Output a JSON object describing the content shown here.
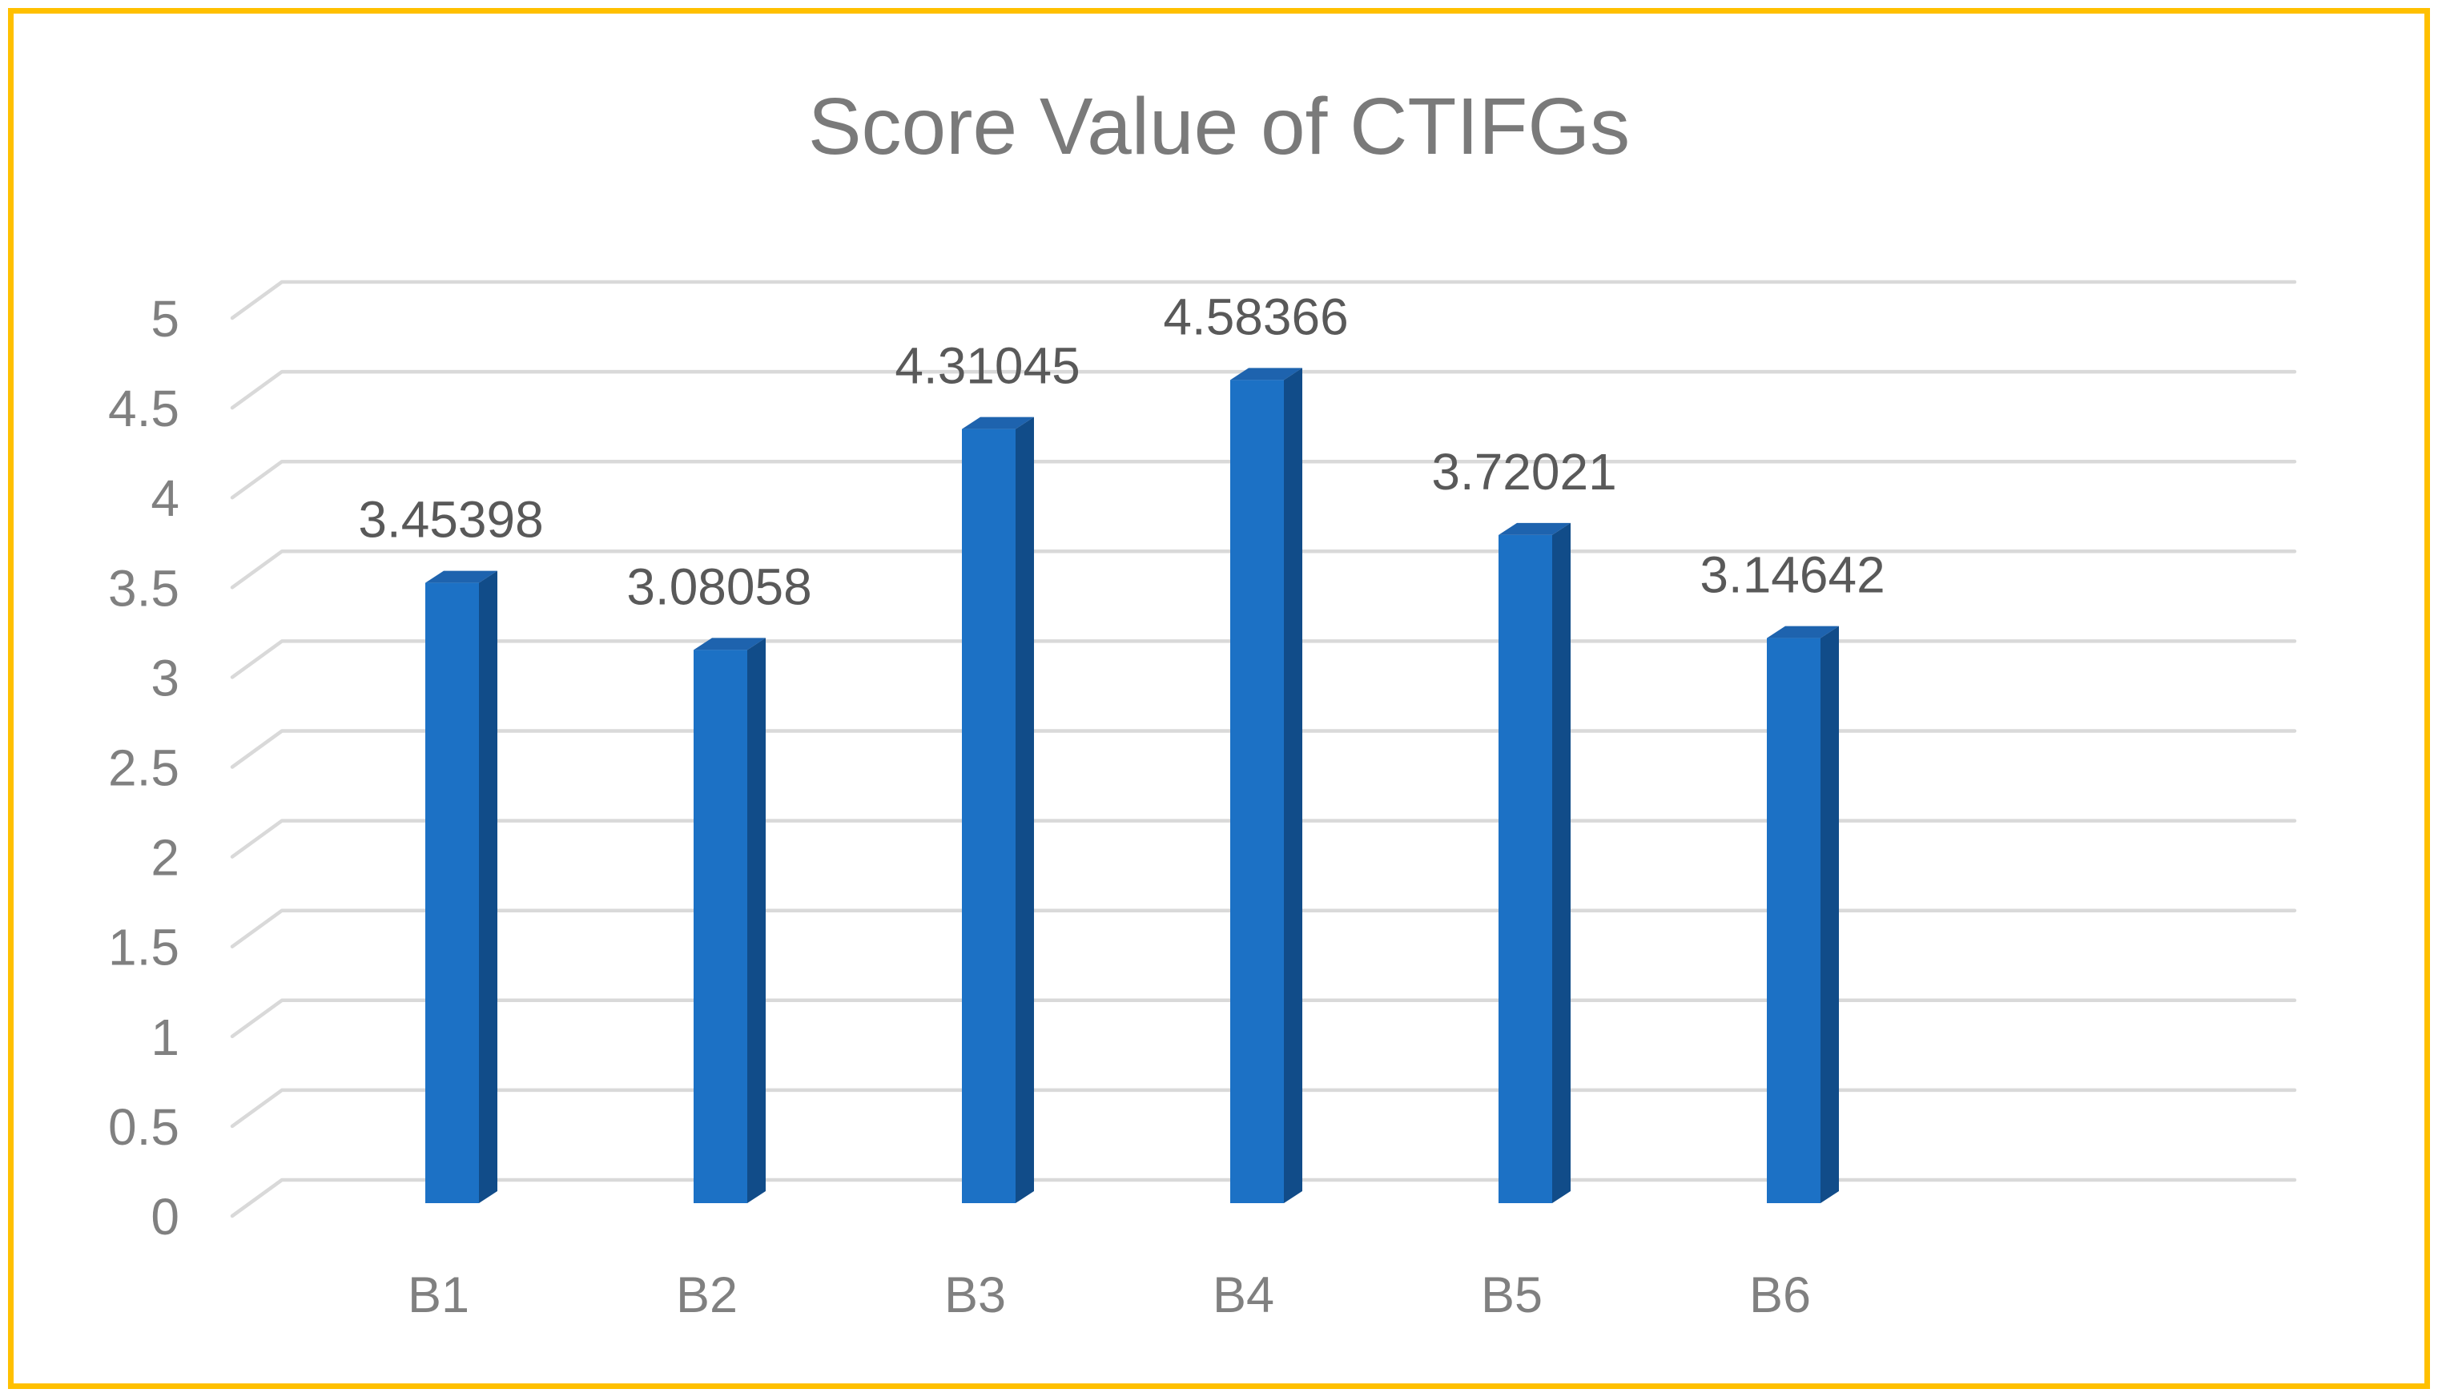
{
  "chart_data": {
    "type": "bar",
    "style": "3d-clustered-column",
    "title": "Score Value of CTIFGs",
    "categories": [
      "B1",
      "B2",
      "B3",
      "B4",
      "B5",
      "B6"
    ],
    "values": [
      3.45398,
      3.08058,
      4.31045,
      4.58366,
      3.72021,
      3.14642
    ],
    "data_labels": [
      "3.45398",
      "3.08058",
      "4.31045",
      "4.58366",
      "3.72021",
      "3.14642"
    ],
    "y_ticks": [
      "5",
      "4.5",
      "4",
      "3.5",
      "3",
      "2.5",
      "2",
      "1.5",
      "1",
      "0.5",
      "0"
    ],
    "ylim": [
      0,
      5
    ],
    "y_tick_step": 0.5,
    "xlabel": "",
    "ylabel": "",
    "grid": true,
    "legend": false,
    "colors": {
      "bar_front": "#1C71C5",
      "bar_top": "#1E63AE",
      "bar_side": "#114C89",
      "gridline": "#D9D9D9",
      "tick_label": "#808080",
      "category_label": "#808080",
      "data_label": "#595959",
      "title": "#7A7A7A",
      "border": "#FFC000",
      "background": "#FFFFFF"
    }
  }
}
